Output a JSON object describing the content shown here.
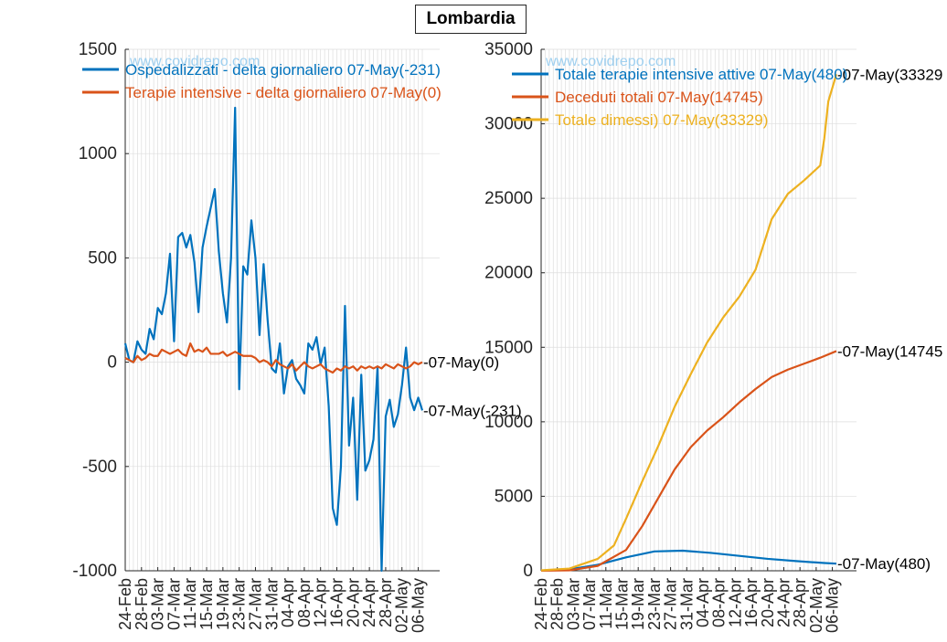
{
  "page_title": "Lombardia",
  "watermark": "www.covidrepo.com",
  "colors": {
    "blue": "#0072BD",
    "orange": "#D95319",
    "yellow": "#EDB120",
    "watermark": "#9FD0F0",
    "grid": "#DDDDDD",
    "axis": "#262626"
  },
  "chart_data": [
    {
      "type": "line",
      "title": "",
      "xlabel": "",
      "ylabel": "",
      "ylim": [
        -1000,
        1500
      ],
      "yticks": [
        -1000,
        -500,
        0,
        500,
        1000,
        1500
      ],
      "grid": true,
      "legend": "top",
      "x_tick_labels": [
        "24-Feb",
        "28-Feb",
        "03-Mar",
        "07-Mar",
        "11-Mar",
        "15-Mar",
        "19-Mar",
        "23-Mar",
        "27-Mar",
        "31-Mar",
        "04-Apr",
        "08-Apr",
        "12-Apr",
        "16-Apr",
        "20-Apr",
        "24-Apr",
        "28-Apr",
        "02-May",
        "06-May"
      ],
      "x_start": "24-Feb",
      "x_end": "07-May",
      "series": [
        {
          "name": "Ospedalizzati - delta giornaliero 07-May(-231)",
          "color": "#0072BD",
          "end_label": "-07-May(-231)",
          "values": [
            90,
            10,
            0,
            100,
            60,
            40,
            160,
            110,
            260,
            230,
            330,
            520,
            100,
            600,
            620,
            550,
            610,
            480,
            240,
            550,
            650,
            740,
            830,
            530,
            330,
            190,
            500,
            1220,
            -130,
            460,
            420,
            680,
            500,
            130,
            470,
            200,
            -30,
            -50,
            90,
            -150,
            -20,
            10,
            -80,
            -110,
            -150,
            90,
            60,
            120,
            -10,
            70,
            -210,
            -700,
            -780,
            -500,
            270,
            -400,
            -170,
            -660,
            -60,
            -520,
            -470,
            -370,
            -20,
            -1000,
            -260,
            -180,
            -310,
            -250,
            -110,
            70,
            -170,
            -230,
            -170,
            -231
          ]
        },
        {
          "name": "Terapie intensive - delta giornaliero 07-May(0)",
          "color": "#D95319",
          "end_label": "-07-May(0)",
          "values": [
            20,
            10,
            0,
            30,
            10,
            20,
            40,
            30,
            30,
            60,
            50,
            40,
            50,
            60,
            40,
            30,
            90,
            50,
            60,
            50,
            70,
            40,
            40,
            40,
            50,
            30,
            40,
            50,
            40,
            30,
            30,
            30,
            20,
            0,
            10,
            0,
            -20,
            10,
            -10,
            -20,
            -30,
            -10,
            -40,
            -20,
            0,
            -20,
            -30,
            -20,
            -10,
            -30,
            -40,
            -50,
            -30,
            -40,
            -20,
            -30,
            -20,
            -40,
            -20,
            -30,
            -20,
            -30,
            -20,
            -30,
            -10,
            -20,
            -30,
            -10,
            -20,
            -30,
            -20,
            0,
            -10,
            0
          ]
        }
      ]
    },
    {
      "type": "line",
      "title": "",
      "xlabel": "",
      "ylabel": "",
      "ylim": [
        0,
        35000
      ],
      "yticks": [
        0,
        5000,
        10000,
        15000,
        20000,
        25000,
        30000,
        35000
      ],
      "grid": true,
      "legend": "top",
      "x_tick_labels": [
        "24-Feb",
        "28-Feb",
        "03-Mar",
        "07-Mar",
        "11-Mar",
        "15-Mar",
        "19-Mar",
        "23-Mar",
        "27-Mar",
        "31-Mar",
        "04-Apr",
        "08-Apr",
        "12-Apr",
        "16-Apr",
        "20-Apr",
        "24-Apr",
        "28-Apr",
        "02-May",
        "06-May"
      ],
      "x_start": "24-Feb",
      "x_end": "07-May",
      "series": [
        {
          "name": "Totale terapie intensive attive 07-May(480)",
          "color": "#0072BD",
          "end_label": "-07-May(480)",
          "points": [
            [
              0,
              20
            ],
            [
              7,
              100
            ],
            [
              14,
              400
            ],
            [
              21,
              900
            ],
            [
              28,
              1300
            ],
            [
              35,
              1350
            ],
            [
              42,
              1200
            ],
            [
              49,
              1000
            ],
            [
              56,
              800
            ],
            [
              63,
              650
            ],
            [
              70,
              520
            ],
            [
              73,
              480
            ]
          ]
        },
        {
          "name": "Deceduti totali 07-May(14745)",
          "color": "#D95319",
          "end_label": "-07-May(14745",
          "points": [
            [
              0,
              5
            ],
            [
              7,
              30
            ],
            [
              14,
              330
            ],
            [
              21,
              1400
            ],
            [
              25,
              3000
            ],
            [
              29,
              4900
            ],
            [
              33,
              6800
            ],
            [
              37,
              8300
            ],
            [
              41,
              9400
            ],
            [
              45,
              10300
            ],
            [
              49,
              11300
            ],
            [
              53,
              12200
            ],
            [
              57,
              13000
            ],
            [
              61,
              13500
            ],
            [
              65,
              13900
            ],
            [
              69,
              14300
            ],
            [
              73,
              14745
            ]
          ]
        },
        {
          "name": "Totale dimessi) 07-May(33329)",
          "color": "#EDB120",
          "end_label": "-07-May(33329",
          "points": [
            [
              0,
              30
            ],
            [
              7,
              150
            ],
            [
              14,
              800
            ],
            [
              18,
              1700
            ],
            [
              21,
              3500
            ],
            [
              25,
              6000
            ],
            [
              29,
              8400
            ],
            [
              33,
              11000
            ],
            [
              37,
              13200
            ],
            [
              41,
              15300
            ],
            [
              45,
              17000
            ],
            [
              49,
              18400
            ],
            [
              53,
              20200
            ],
            [
              57,
              23600
            ],
            [
              61,
              25300
            ],
            [
              65,
              26200
            ],
            [
              69,
              27200
            ],
            [
              70,
              29000
            ],
            [
              71,
              31500
            ],
            [
              73,
              33329
            ]
          ]
        }
      ]
    }
  ]
}
